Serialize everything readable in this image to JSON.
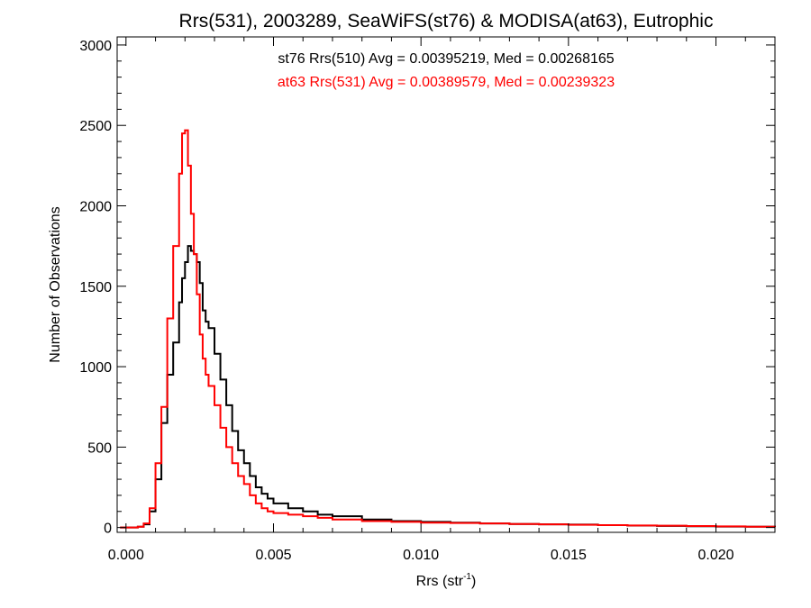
{
  "chart_data": {
    "type": "line",
    "title": "Rrs(531), 2003289, SeaWiFS(st76) & MODISA(at63), Eutrophic",
    "xlabel": "Rrs (str",
    "xlabel_sup": "-1",
    "xlabel_suffix": ")",
    "ylabel": "Number of Observations",
    "xlim": [
      -0.0003,
      0.022
    ],
    "ylim": [
      -30,
      3050
    ],
    "xticks": [
      0.0,
      0.005,
      0.01,
      0.015,
      0.02
    ],
    "xtick_labels": [
      "0.000",
      "0.005",
      "0.010",
      "0.015",
      "0.020"
    ],
    "yticks": [
      0,
      500,
      1000,
      1500,
      2000,
      2500,
      3000
    ],
    "ytick_labels": [
      "0",
      "500",
      "1000",
      "1500",
      "2000",
      "2500",
      "3000"
    ],
    "step": true,
    "series": [
      {
        "name": "st76 Rrs(510) Avg = 0.00395219, Med = 0.00268165",
        "color": "#000000",
        "x": [
          -0.0002,
          0.0,
          0.0004,
          0.0006,
          0.0008,
          0.001,
          0.0012,
          0.0014,
          0.0016,
          0.0018,
          0.0019,
          0.002,
          0.0021,
          0.0022,
          0.0023,
          0.0024,
          0.0025,
          0.0026,
          0.0027,
          0.0028,
          0.003,
          0.0032,
          0.0034,
          0.0036,
          0.0038,
          0.004,
          0.0042,
          0.0044,
          0.0046,
          0.0048,
          0.005,
          0.0055,
          0.006,
          0.0065,
          0.007,
          0.008,
          0.009,
          0.01,
          0.011,
          0.012,
          0.013,
          0.014,
          0.015,
          0.016,
          0.017,
          0.018,
          0.019,
          0.02,
          0.021,
          0.022
        ],
        "y": [
          0,
          0,
          5,
          20,
          100,
          300,
          650,
          950,
          1150,
          1400,
          1550,
          1650,
          1750,
          1720,
          1700,
          1650,
          1520,
          1350,
          1280,
          1240,
          1080,
          920,
          760,
          600,
          480,
          400,
          320,
          250,
          210,
          180,
          150,
          120,
          100,
          80,
          70,
          50,
          40,
          35,
          30,
          25,
          22,
          20,
          18,
          15,
          12,
          10,
          8,
          6,
          5,
          3
        ]
      },
      {
        "name": "at63 Rrs(531) Avg = 0.00389579, Med = 0.00239323",
        "color": "#ff0000",
        "x": [
          -0.0002,
          0.0,
          0.0004,
          0.0006,
          0.0008,
          0.001,
          0.0012,
          0.0014,
          0.0016,
          0.0018,
          0.0019,
          0.002,
          0.0021,
          0.0022,
          0.0023,
          0.0024,
          0.0025,
          0.0026,
          0.0027,
          0.0028,
          0.003,
          0.0032,
          0.0034,
          0.0036,
          0.0038,
          0.004,
          0.0042,
          0.0044,
          0.0046,
          0.0048,
          0.005,
          0.0055,
          0.006,
          0.0065,
          0.007,
          0.008,
          0.009,
          0.01,
          0.011,
          0.012,
          0.013,
          0.014,
          0.015,
          0.016,
          0.017,
          0.018,
          0.019,
          0.02,
          0.021,
          0.022
        ],
        "y": [
          0,
          0,
          5,
          25,
          120,
          400,
          750,
          1300,
          1750,
          2200,
          2450,
          2470,
          2250,
          1950,
          1700,
          1450,
          1200,
          1050,
          950,
          880,
          760,
          620,
          500,
          400,
          320,
          270,
          200,
          150,
          120,
          100,
          90,
          80,
          70,
          60,
          50,
          40,
          35,
          30,
          28,
          25,
          22,
          20,
          17,
          15,
          13,
          11,
          9,
          7,
          5,
          3
        ]
      }
    ]
  }
}
